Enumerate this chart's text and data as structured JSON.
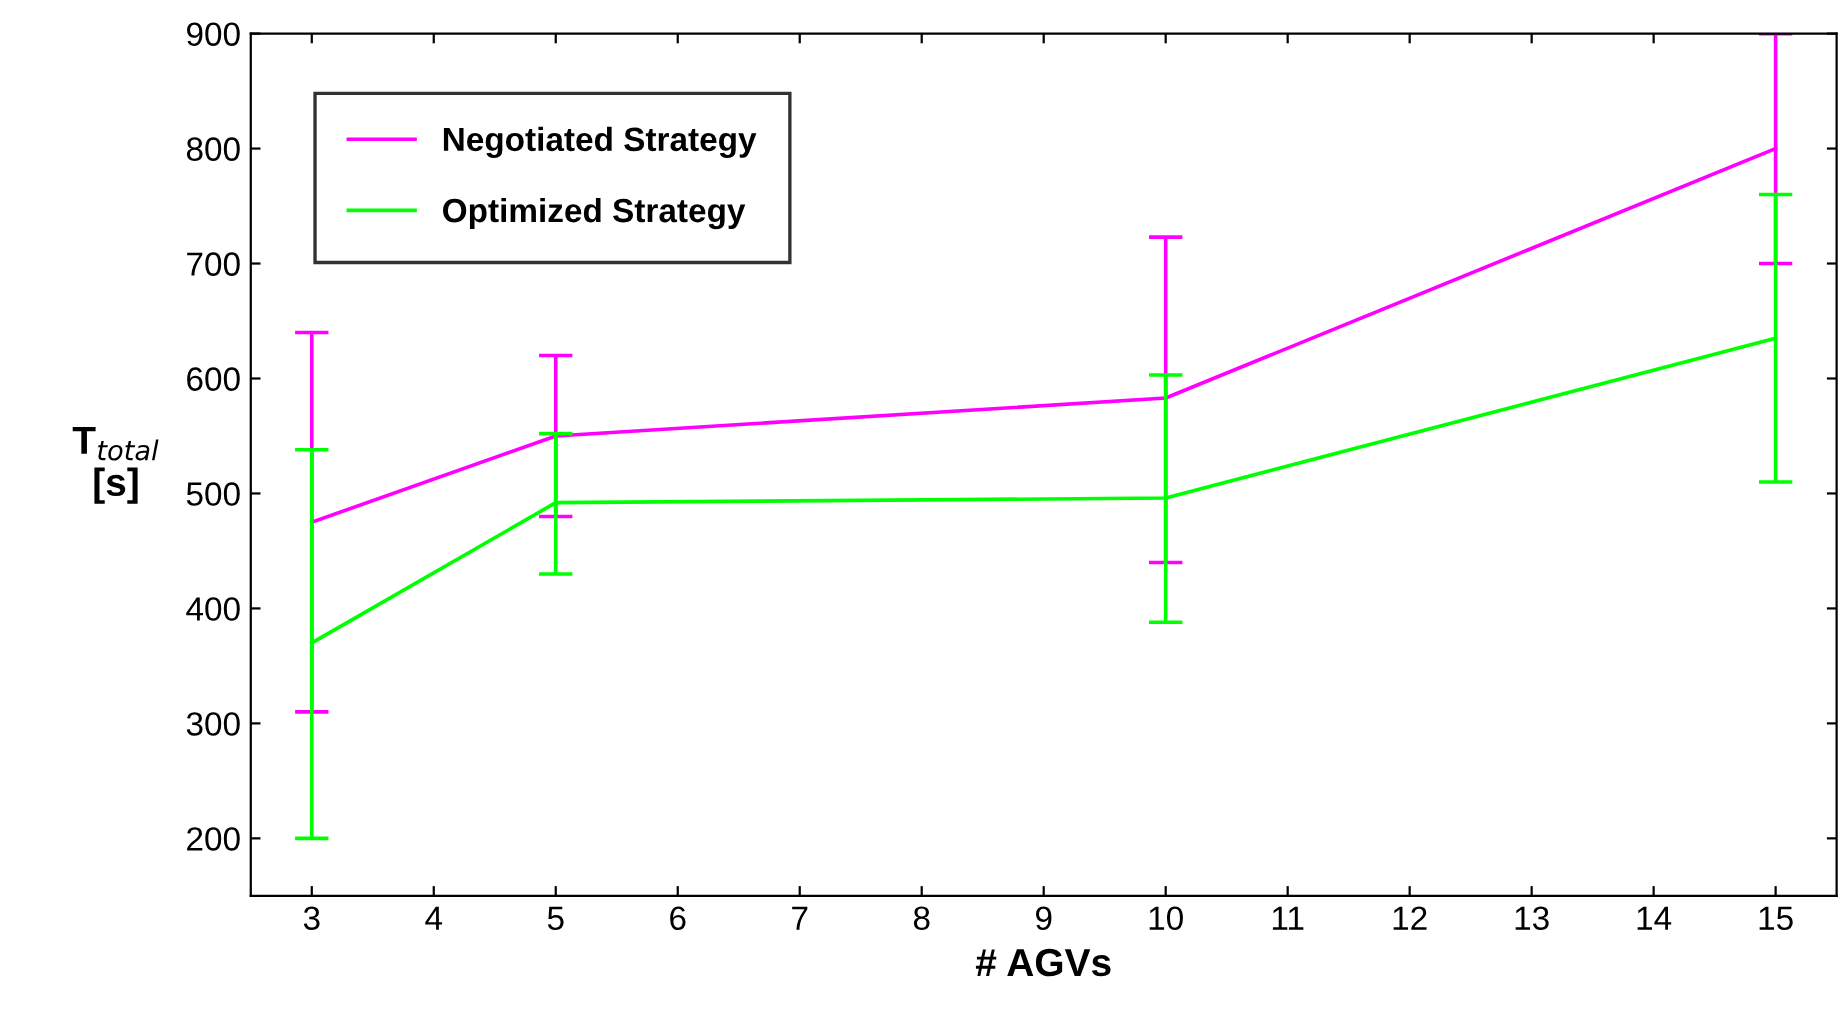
{
  "chart_data": {
    "type": "line",
    "xlabel": "# AGVs",
    "ylabel": "T$_{total}$\n[s]",
    "xlim": [
      2.5,
      15.5
    ],
    "xticks": [
      3,
      4,
      5,
      6,
      7,
      8,
      9,
      10,
      11,
      12,
      13,
      14,
      15
    ],
    "ylim": [
      150,
      900
    ],
    "yticks": [
      200,
      300,
      400,
      500,
      600,
      700,
      800,
      900
    ],
    "x": [
      3,
      5,
      10,
      15
    ],
    "series": [
      {
        "name": "Negotiated Strategy",
        "color": "#ff00ff",
        "values": [
          475,
          550,
          583,
          800
        ],
        "errors": [
          [
            310,
            640
          ],
          [
            480,
            620
          ],
          [
            440,
            723
          ],
          [
            700,
            900
          ]
        ]
      },
      {
        "name": "Optimized Strategy",
        "color": "#00ff00",
        "values": [
          370,
          492,
          496,
          635
        ],
        "errors": [
          [
            200,
            538
          ],
          [
            430,
            552
          ],
          [
            388,
            603
          ],
          [
            510,
            760
          ]
        ]
      }
    ],
    "legend": "top left",
    "grid": false,
    "marker": "none",
    "line_style": "solid"
  }
}
